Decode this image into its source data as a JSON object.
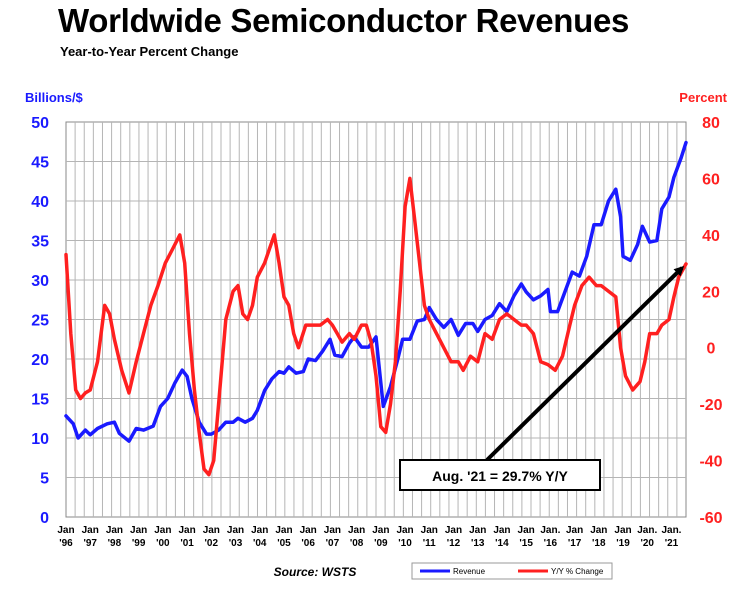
{
  "chart_data": {
    "type": "line",
    "title": "Worldwide Semiconductor Revenues",
    "subtitle": "Year-to-Year Percent Change",
    "ylabel_left": "Billions/$",
    "ylabel_right": "Percent",
    "ylim_left": [
      0,
      50
    ],
    "ylim_right": [
      -60,
      80
    ],
    "yticks_left": [
      "0",
      "5",
      "10",
      "15",
      "20",
      "25",
      "30",
      "35",
      "40",
      "45",
      "50"
    ],
    "yticks_right": [
      "-60",
      "-40",
      "-20",
      "0",
      "20",
      "40",
      "60",
      "80"
    ],
    "grid": true,
    "x_range": [
      1996.0,
      2021.6
    ],
    "x_tick_labels": [
      {
        "top": "Jan",
        "bottom": "'96"
      },
      {
        "top": "Jan",
        "bottom": "'97"
      },
      {
        "top": "Jan",
        "bottom": "'98"
      },
      {
        "top": "Jan",
        "bottom": "'99"
      },
      {
        "top": "Jan",
        "bottom": "'00"
      },
      {
        "top": "Jan",
        "bottom": "'01"
      },
      {
        "top": "Jan",
        "bottom": "'02"
      },
      {
        "top": "Jan",
        "bottom": "'03"
      },
      {
        "top": "Jan",
        "bottom": "'04"
      },
      {
        "top": "Jan",
        "bottom": "'05"
      },
      {
        "top": "Jan",
        "bottom": "'06"
      },
      {
        "top": "Jan",
        "bottom": "'07"
      },
      {
        "top": "Jan",
        "bottom": "'08"
      },
      {
        "top": "Jan",
        "bottom": "'09"
      },
      {
        "top": "Jan",
        "bottom": "'10"
      },
      {
        "top": "Jan",
        "bottom": "'11"
      },
      {
        "top": "Jan",
        "bottom": "'12"
      },
      {
        "top": "Jan",
        "bottom": "'13"
      },
      {
        "top": "Jan",
        "bottom": "'14"
      },
      {
        "top": "Jan",
        "bottom": "'15"
      },
      {
        "top": "Jan.",
        "bottom": "'16"
      },
      {
        "top": "Jan",
        "bottom": "'17"
      },
      {
        "top": "Jan",
        "bottom": "'18"
      },
      {
        "top": "Jan",
        "bottom": "'19"
      },
      {
        "top": "Jan.",
        "bottom": "'20"
      },
      {
        "top": "Jan.",
        "bottom": "'21"
      }
    ],
    "series": [
      {
        "name": "Revenue",
        "axis": "left",
        "color": "#1a1aff",
        "points": [
          [
            1996.0,
            12.8
          ],
          [
            1996.3,
            11.8
          ],
          [
            1996.5,
            10.0
          ],
          [
            1996.8,
            11.0
          ],
          [
            1997.0,
            10.4
          ],
          [
            1997.3,
            11.2
          ],
          [
            1997.7,
            11.8
          ],
          [
            1998.0,
            12.0
          ],
          [
            1998.2,
            10.6
          ],
          [
            1998.6,
            9.6
          ],
          [
            1998.9,
            11.2
          ],
          [
            1999.2,
            11.0
          ],
          [
            1999.6,
            11.5
          ],
          [
            1999.9,
            14.0
          ],
          [
            2000.2,
            15.0
          ],
          [
            2000.5,
            17.0
          ],
          [
            2000.8,
            18.6
          ],
          [
            2001.0,
            17.8
          ],
          [
            2001.2,
            15.0
          ],
          [
            2001.5,
            12.0
          ],
          [
            2001.8,
            10.5
          ],
          [
            2002.0,
            10.5
          ],
          [
            2002.3,
            11.0
          ],
          [
            2002.6,
            12.0
          ],
          [
            2002.9,
            12.0
          ],
          [
            2003.1,
            12.5
          ],
          [
            2003.4,
            12.0
          ],
          [
            2003.7,
            12.5
          ],
          [
            2003.9,
            13.5
          ],
          [
            2004.2,
            16.0
          ],
          [
            2004.5,
            17.5
          ],
          [
            2004.8,
            18.4
          ],
          [
            2005.0,
            18.2
          ],
          [
            2005.2,
            19.0
          ],
          [
            2005.5,
            18.2
          ],
          [
            2005.8,
            18.4
          ],
          [
            2006.0,
            20.0
          ],
          [
            2006.3,
            19.8
          ],
          [
            2006.6,
            21.0
          ],
          [
            2006.9,
            22.5
          ],
          [
            2007.1,
            20.5
          ],
          [
            2007.4,
            20.3
          ],
          [
            2007.7,
            22.0
          ],
          [
            2007.9,
            22.8
          ],
          [
            2008.2,
            21.5
          ],
          [
            2008.5,
            21.5
          ],
          [
            2008.8,
            22.8
          ],
          [
            2009.0,
            17.0
          ],
          [
            2009.1,
            14.0
          ],
          [
            2009.4,
            16.5
          ],
          [
            2009.7,
            20.0
          ],
          [
            2009.9,
            22.5
          ],
          [
            2010.2,
            22.5
          ],
          [
            2010.5,
            24.8
          ],
          [
            2010.8,
            25.0
          ],
          [
            2011.0,
            26.5
          ],
          [
            2011.3,
            25.0
          ],
          [
            2011.6,
            24.0
          ],
          [
            2011.9,
            25.0
          ],
          [
            2012.2,
            23.0
          ],
          [
            2012.5,
            24.5
          ],
          [
            2012.8,
            24.5
          ],
          [
            2013.0,
            23.5
          ],
          [
            2013.3,
            25.0
          ],
          [
            2013.6,
            25.5
          ],
          [
            2013.9,
            27.0
          ],
          [
            2014.2,
            26.0
          ],
          [
            2014.5,
            28.0
          ],
          [
            2014.8,
            29.5
          ],
          [
            2015.0,
            28.5
          ],
          [
            2015.3,
            27.5
          ],
          [
            2015.6,
            28.0
          ],
          [
            2015.9,
            28.8
          ],
          [
            2016.0,
            26.0
          ],
          [
            2016.3,
            26.0
          ],
          [
            2016.6,
            28.5
          ],
          [
            2016.9,
            31.0
          ],
          [
            2017.2,
            30.5
          ],
          [
            2017.5,
            33.0
          ],
          [
            2017.8,
            37.0
          ],
          [
            2018.1,
            37.0
          ],
          [
            2018.4,
            40.0
          ],
          [
            2018.7,
            41.5
          ],
          [
            2018.9,
            38.0
          ],
          [
            2019.0,
            33.0
          ],
          [
            2019.3,
            32.5
          ],
          [
            2019.6,
            34.5
          ],
          [
            2019.8,
            36.8
          ],
          [
            2020.1,
            34.8
          ],
          [
            2020.4,
            35.0
          ],
          [
            2020.6,
            39.0
          ],
          [
            2020.9,
            40.5
          ],
          [
            2021.1,
            43.0
          ],
          [
            2021.4,
            45.5
          ],
          [
            2021.6,
            47.4
          ]
        ]
      },
      {
        "name": "Y/Y % Change",
        "axis": "right",
        "color": "#ff2020",
        "points": [
          [
            1996.0,
            33
          ],
          [
            1996.2,
            5
          ],
          [
            1996.4,
            -15
          ],
          [
            1996.6,
            -18
          ],
          [
            1996.8,
            -16
          ],
          [
            1997.0,
            -15
          ],
          [
            1997.3,
            -5
          ],
          [
            1997.6,
            15
          ],
          [
            1997.8,
            12
          ],
          [
            1998.0,
            3
          ],
          [
            1998.3,
            -8
          ],
          [
            1998.6,
            -16
          ],
          [
            1998.9,
            -5
          ],
          [
            1999.2,
            5
          ],
          [
            1999.5,
            15
          ],
          [
            1999.8,
            22
          ],
          [
            2000.1,
            30
          ],
          [
            2000.4,
            35
          ],
          [
            2000.7,
            40
          ],
          [
            2000.9,
            30
          ],
          [
            2001.1,
            5
          ],
          [
            2001.3,
            -15
          ],
          [
            2001.5,
            -30
          ],
          [
            2001.7,
            -43
          ],
          [
            2001.9,
            -45
          ],
          [
            2002.1,
            -40
          ],
          [
            2002.3,
            -20
          ],
          [
            2002.6,
            10
          ],
          [
            2002.9,
            20
          ],
          [
            2003.1,
            22
          ],
          [
            2003.3,
            12
          ],
          [
            2003.5,
            10
          ],
          [
            2003.7,
            15
          ],
          [
            2003.9,
            25
          ],
          [
            2004.2,
            30
          ],
          [
            2004.4,
            35
          ],
          [
            2004.6,
            40
          ],
          [
            2004.8,
            30
          ],
          [
            2005.0,
            18
          ],
          [
            2005.2,
            15
          ],
          [
            2005.4,
            5
          ],
          [
            2005.6,
            0
          ],
          [
            2005.9,
            8
          ],
          [
            2006.2,
            8
          ],
          [
            2006.5,
            8
          ],
          [
            2006.8,
            10
          ],
          [
            2007.0,
            8
          ],
          [
            2007.2,
            5
          ],
          [
            2007.4,
            2
          ],
          [
            2007.7,
            5
          ],
          [
            2007.9,
            3
          ],
          [
            2008.2,
            8
          ],
          [
            2008.4,
            8
          ],
          [
            2008.6,
            2
          ],
          [
            2008.8,
            -10
          ],
          [
            2009.0,
            -28
          ],
          [
            2009.2,
            -30
          ],
          [
            2009.4,
            -20
          ],
          [
            2009.6,
            -5
          ],
          [
            2009.8,
            20
          ],
          [
            2010.0,
            50
          ],
          [
            2010.2,
            60
          ],
          [
            2010.4,
            45
          ],
          [
            2010.6,
            30
          ],
          [
            2010.8,
            15
          ],
          [
            2011.0,
            10
          ],
          [
            2011.3,
            5
          ],
          [
            2011.6,
            0
          ],
          [
            2011.9,
            -5
          ],
          [
            2012.2,
            -5
          ],
          [
            2012.4,
            -8
          ],
          [
            2012.7,
            -3
          ],
          [
            2013.0,
            -5
          ],
          [
            2013.3,
            5
          ],
          [
            2013.6,
            3
          ],
          [
            2013.9,
            10
          ],
          [
            2014.2,
            12
          ],
          [
            2014.5,
            10
          ],
          [
            2014.8,
            8
          ],
          [
            2015.0,
            8
          ],
          [
            2015.3,
            5
          ],
          [
            2015.6,
            -5
          ],
          [
            2015.9,
            -6
          ],
          [
            2016.2,
            -8
          ],
          [
            2016.5,
            -3
          ],
          [
            2016.8,
            8
          ],
          [
            2017.0,
            15
          ],
          [
            2017.3,
            22
          ],
          [
            2017.6,
            25
          ],
          [
            2017.9,
            22
          ],
          [
            2018.1,
            22
          ],
          [
            2018.4,
            20
          ],
          [
            2018.7,
            18
          ],
          [
            2018.9,
            0
          ],
          [
            2019.1,
            -10
          ],
          [
            2019.4,
            -15
          ],
          [
            2019.7,
            -12
          ],
          [
            2019.9,
            -5
          ],
          [
            2020.1,
            5
          ],
          [
            2020.4,
            5
          ],
          [
            2020.6,
            8
          ],
          [
            2020.9,
            10
          ],
          [
            2021.1,
            18
          ],
          [
            2021.3,
            25
          ],
          [
            2021.6,
            29.7
          ]
        ]
      }
    ],
    "annotation": {
      "text": "Aug. '21 = 29.7% Y/Y",
      "target_x": 2021.6,
      "target_y_right": 29.7
    },
    "source": "Source: WSTS",
    "legend": [
      "Revenue",
      "Y/Y % Change"
    ],
    "legend_position": "bottom-right"
  }
}
